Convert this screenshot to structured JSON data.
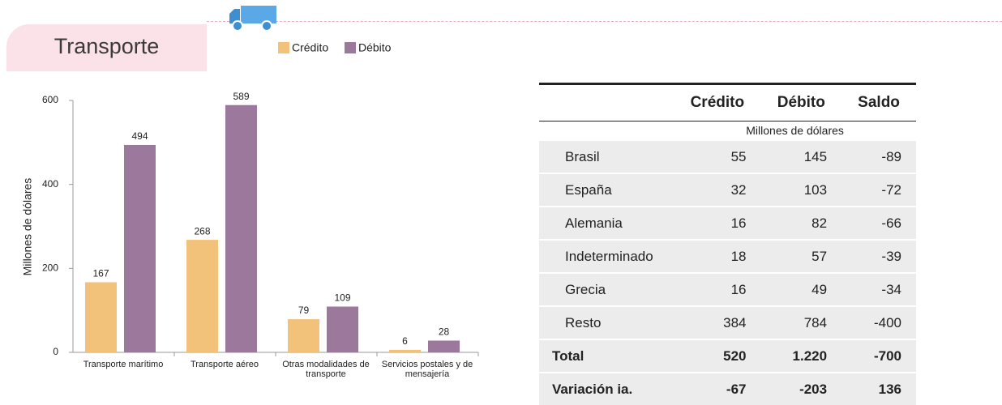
{
  "header": {
    "title": "Transporte"
  },
  "chart_data": {
    "type": "bar",
    "y_label": "Millones de dólares",
    "categories": [
      "Transporte marítimo",
      "Transporte aéreo",
      "Otras modalidades de transporte",
      "Servicios postales y de mensajería"
    ],
    "series": [
      {
        "name": "Crédito",
        "color": "#f3c27a",
        "values": [
          167,
          268,
          79,
          6
        ]
      },
      {
        "name": "Débito",
        "color": "#9b789c",
        "values": [
          494,
          589,
          109,
          28
        ]
      }
    ],
    "ylim": [
      0,
      600
    ],
    "yticks": [
      0,
      200,
      400,
      600
    ]
  },
  "table": {
    "columns": [
      "Crédito",
      "Débito",
      "Saldo"
    ],
    "subheader": "Millones de dólares",
    "rows": [
      [
        "Brasil",
        "55",
        "145",
        "-89"
      ],
      [
        "España",
        "32",
        "103",
        "-72"
      ],
      [
        "Alemania",
        "16",
        "82",
        "-66"
      ],
      [
        "Indeterminado",
        "18",
        "57",
        "-39"
      ],
      [
        "Grecia",
        "16",
        "49",
        "-34"
      ],
      [
        "Resto",
        "384",
        "784",
        "-400"
      ]
    ],
    "totals": [
      [
        "Total",
        "520",
        "1.220",
        "-700"
      ],
      [
        "Variación ia.",
        "-67",
        "-203",
        "136"
      ]
    ]
  }
}
